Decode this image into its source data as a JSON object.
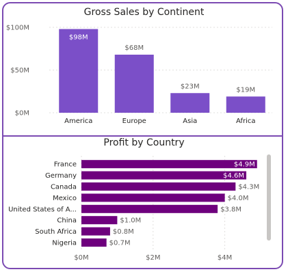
{
  "chart_data": [
    {
      "type": "bar",
      "title": "Gross Sales by Continent",
      "categories": [
        "America",
        "Europe",
        "Asia",
        "Africa"
      ],
      "values": [
        98,
        68,
        23,
        19
      ],
      "value_labels": [
        "$98M",
        "$68M",
        "$23M",
        "$19M"
      ],
      "y_ticks": [
        "$0M",
        "$50M",
        "$100M"
      ],
      "ylim": [
        0,
        100
      ],
      "grid": true,
      "bar_color": "#7b4fc8"
    },
    {
      "type": "bar",
      "orientation": "horizontal",
      "title": "Profit by Country",
      "categories": [
        "France",
        "Germany",
        "Canada",
        "Mexico",
        "United States of A...",
        "China",
        "South Africa",
        "Nigeria"
      ],
      "values": [
        4.9,
        4.6,
        4.3,
        4.0,
        3.8,
        1.0,
        0.8,
        0.7
      ],
      "value_labels": [
        "$4.9M",
        "$4.6M",
        "$4.3M",
        "$4.0M",
        "$3.8M",
        "$1.0M",
        "$0.8M",
        "$0.7M"
      ],
      "x_ticks": [
        "$0M",
        "$2M",
        "$4M"
      ],
      "xlim": [
        0,
        5
      ],
      "grid": true,
      "bar_color": "#6e007d"
    }
  ]
}
